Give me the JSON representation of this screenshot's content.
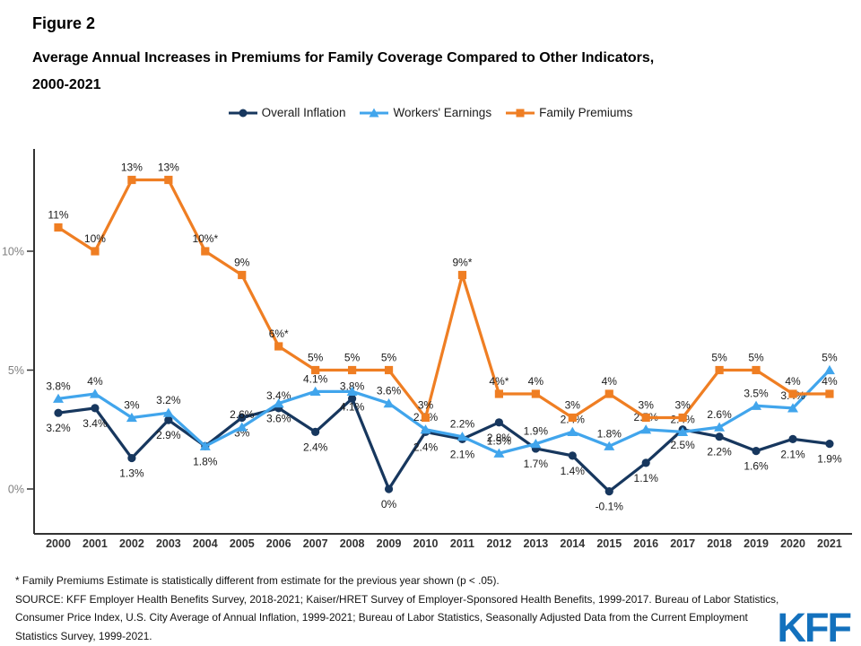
{
  "header": {
    "figure_label": "Figure 2",
    "title_line1": "Average Annual Increases in Premiums for Family Coverage Compared to Other Indicators,",
    "title_line2": "2000-2021"
  },
  "legend": [
    {
      "label": "Overall Inflation",
      "color": "#17375e",
      "marker": "circle"
    },
    {
      "label": "Workers' Earnings",
      "color": "#41a5ec",
      "marker": "triangle"
    },
    {
      "label": "Family Premiums",
      "color": "#ef7e23",
      "marker": "square"
    }
  ],
  "chart_data": {
    "type": "line",
    "title": "Average Annual Increases in Premiums for Family Coverage Compared to Other Indicators, 2000-2021",
    "xlabel": "",
    "ylabel": "",
    "categories": [
      "2000",
      "2001",
      "2002",
      "2003",
      "2004",
      "2005",
      "2006",
      "2007",
      "2008",
      "2009",
      "2010",
      "2011",
      "2012",
      "2013",
      "2014",
      "2015",
      "2016",
      "2017",
      "2018",
      "2019",
      "2020",
      "2021"
    ],
    "yticks": [
      {
        "value": 0,
        "label": "0%"
      },
      {
        "value": 5,
        "label": "5%"
      },
      {
        "value": 10,
        "label": "10%"
      }
    ],
    "ylim": [
      -2,
      13.8
    ],
    "grid": false,
    "legend_position": "top-center",
    "axis_color": "#333333",
    "tick_label_color": "#808080",
    "year_label_color": "#333333",
    "data_label_color": "#1a1a1a",
    "series": [
      {
        "name": "Overall Inflation",
        "color": "#17375e",
        "marker": "circle",
        "values": [
          3.2,
          3.4,
          1.3,
          2.9,
          1.8,
          3.0,
          3.4,
          2.4,
          3.8,
          0,
          2.4,
          2.1,
          2.8,
          1.7,
          1.4,
          -0.1,
          1.1,
          2.5,
          2.2,
          1.6,
          2.1,
          1.9
        ],
        "labels": [
          "3.2%",
          "3.4%",
          "1.3%",
          "2.9%",
          "1.8%",
          "3%",
          "3.4%",
          "2.4%",
          "3.8%",
          "0%",
          "2.4%",
          "2.1%",
          "2.8%",
          "1.7%",
          "1.4%",
          "-0.1%",
          "1.1%",
          "2.5%",
          "2.2%",
          "1.6%",
          "2.1%",
          "1.9%"
        ],
        "label_pos": [
          "below",
          "below",
          "below",
          "below",
          "below",
          "below",
          "above",
          "below",
          "above",
          "below",
          "below",
          "below",
          "below",
          "below",
          "below",
          "below",
          "below",
          "below",
          "below",
          "below",
          "below",
          "below"
        ]
      },
      {
        "name": "Workers' Earnings",
        "color": "#41a5ec",
        "marker": "triangle",
        "values": [
          3.8,
          4.0,
          3.0,
          3.2,
          1.8,
          2.6,
          3.6,
          4.1,
          4.1,
          3.6,
          2.5,
          2.2,
          1.5,
          1.9,
          2.4,
          1.8,
          2.5,
          2.4,
          2.6,
          3.5,
          3.4,
          5.0
        ],
        "labels": [
          "3.8%",
          "4%",
          "3%",
          "3.2%",
          "",
          "2.6%",
          "3.6%",
          "4.1%",
          "4.1%",
          "3.6%",
          "2.5%",
          "2.2%",
          "1.5%",
          "1.9%",
          "2.4%",
          "1.8%",
          "2.5%",
          "2.4%",
          "2.6%",
          "3.5%",
          "3.4%",
          "5%"
        ],
        "label_pos": [
          "above",
          "above",
          "above",
          "above",
          "none",
          "above",
          "below",
          "above",
          "below",
          "above",
          "above",
          "above",
          "above",
          "above",
          "above",
          "above",
          "above",
          "above",
          "above",
          "above",
          "above",
          "above"
        ]
      },
      {
        "name": "Family Premiums",
        "color": "#ef7e23",
        "marker": "square",
        "values": [
          11,
          10,
          13,
          13,
          10,
          9,
          6,
          5,
          5,
          5,
          3,
          9,
          4,
          4,
          3,
          4,
          3,
          3,
          5,
          5,
          4,
          4
        ],
        "labels": [
          "11%",
          "10%",
          "13%",
          "13%",
          "10%*",
          "9%",
          "6%*",
          "5%",
          "5%",
          "5%",
          "3%",
          "9%*",
          "4%*",
          "4%",
          "3%",
          "4%",
          "3%",
          "3%",
          "5%",
          "5%",
          "4%",
          "4%"
        ],
        "label_pos": [
          "above",
          "above",
          "above",
          "above",
          "above",
          "above",
          "above",
          "above",
          "above",
          "above",
          "above",
          "above",
          "above",
          "above",
          "above",
          "above",
          "above",
          "above",
          "above",
          "above",
          "above",
          "above"
        ]
      }
    ]
  },
  "footer": {
    "footnote": "* Family Premiums Estimate is statistically different from estimate for the previous year shown (p < .05).",
    "source": "SOURCE: KFF Employer Health Benefits Survey, 2018-2021; Kaiser/HRET Survey of Employer-Sponsored Health Benefits, 1999-2017. Bureau of Labor Statistics, Consumer Price Index, U.S. City Average of Annual Inflation, 1999-2021; Bureau of Labor Statistics, Seasonally Adjusted Data from the Current Employment Statistics Survey, 1999-2021.",
    "logo": "KFF"
  }
}
